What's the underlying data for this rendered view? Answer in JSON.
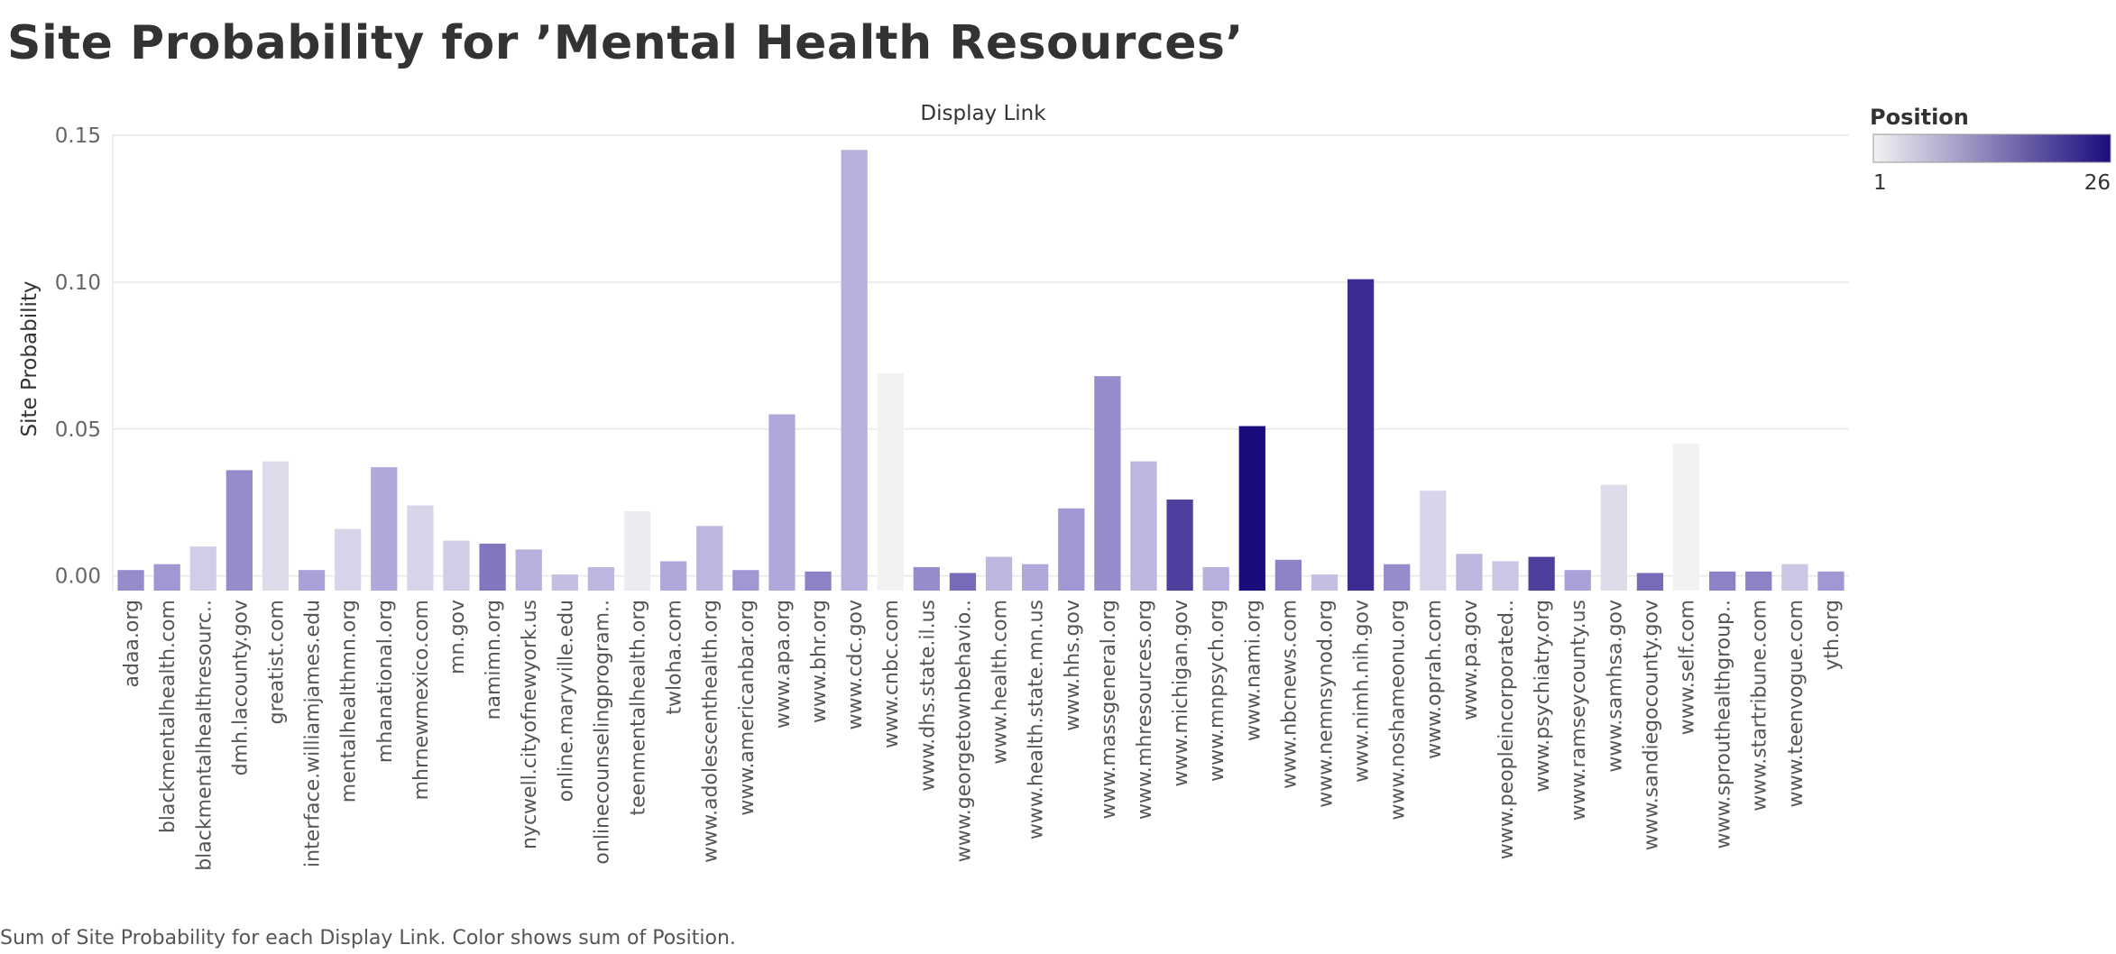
{
  "page": {
    "title": "Site Probability for ’Mental Health Resources’",
    "caption": "Sum of Site Probability for each Display Link.  Color shows sum of Position."
  },
  "legend": {
    "title": "Position",
    "min_label": "1",
    "max_label": "26",
    "colors": [
      "#f2f2f2",
      "#1b0c7d"
    ]
  },
  "chart_data": {
    "type": "bar",
    "title": "Site Probability for ’Mental Health Resources’",
    "xlabel": "Display Link",
    "ylabel": "Site Probability",
    "ylim": [
      -0.005,
      0.15
    ],
    "yticks": [
      0.0,
      0.05,
      0.1,
      0.15
    ],
    "ytick_labels": [
      "0.00",
      "0.05",
      "0.10",
      "0.15"
    ],
    "grid": true,
    "color_legend": "Position",
    "color_range": [
      1,
      26
    ],
    "categories": [
      "adaa.org",
      "blackmentalhealth.com",
      "blackmentalhealthresourc..",
      "dmh.lacounty.gov",
      "greatist.com",
      "interface.williamjames.edu",
      "mentalhealthmn.org",
      "mhanational.org",
      "mhrnewmexico.com",
      "mn.gov",
      "namimn.org",
      "nycwell.cityofnewyork.us",
      "online.maryville.edu",
      "onlinecounselingprogram..",
      "teenmentalhealth.org",
      "twloha.com",
      "www.adolescenthealth.org",
      "www.americanbar.org",
      "www.apa.org",
      "www.bhr.org",
      "www.cdc.gov",
      "www.cnbc.com",
      "www.dhs.state.il.us",
      "www.georgetownbehavio..",
      "www.health.com",
      "www.health.state.mn.us",
      "www.hhs.gov",
      "www.massgeneral.org",
      "www.mhresources.org",
      "www.michigan.gov",
      "www.mnpsych.org",
      "www.nami.org",
      "www.nbcnews.com",
      "www.nemnsynod.org",
      "www.nimh.nih.gov",
      "www.noshameonu.org",
      "www.oprah.com",
      "www.pa.gov",
      "www.peopleincorporated..",
      "www.psychiatry.org",
      "www.ramseycounty.us",
      "www.samhsa.gov",
      "www.sandiegocounty.gov",
      "www.self.com",
      "www.sprouthealthgroup..",
      "www.startribune.com",
      "www.teenvogue.com",
      "yth.org"
    ],
    "values": [
      0.002,
      0.004,
      0.01,
      0.036,
      0.039,
      0.002,
      0.016,
      0.037,
      0.024,
      0.012,
      0.011,
      0.009,
      0.0005,
      0.003,
      0.022,
      0.005,
      0.017,
      0.002,
      0.055,
      0.0015,
      0.145,
      0.069,
      0.003,
      0.001,
      0.0065,
      0.004,
      0.023,
      0.068,
      0.039,
      0.026,
      0.003,
      0.051,
      0.0055,
      0.0005,
      0.101,
      0.004,
      0.029,
      0.0075,
      0.005,
      0.0065,
      0.002,
      0.031,
      0.001,
      0.045,
      0.0015,
      0.0015,
      0.004,
      0.0015
    ],
    "positions": [
      14,
      13,
      6,
      14,
      4,
      12,
      5,
      11,
      5,
      6,
      16,
      10,
      8,
      9,
      2,
      11,
      9,
      13,
      11,
      15,
      10,
      1,
      14,
      17,
      9,
      11,
      13,
      14,
      9,
      21,
      10,
      26,
      15,
      8,
      23,
      14,
      5,
      9,
      7,
      21,
      12,
      4,
      17,
      1,
      15,
      15,
      7,
      13
    ]
  }
}
